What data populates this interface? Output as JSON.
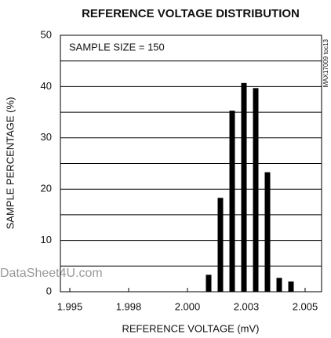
{
  "chart_data": {
    "type": "bar",
    "title": "REFERENCE VOLTAGE DISTRIBUTION",
    "x_label": "REFERENCE VOLTAGE (mV)",
    "y_label": "SAMPLE PERCENTAGE (%)",
    "annotations": [
      "SAMPLE SIZE = 150",
      "MAX17009 toc13",
      "DataSheet4U.com"
    ],
    "x": [
      2.0009,
      2.0014,
      2.0019,
      2.0024,
      2.0029,
      2.0034,
      2.0039,
      2.0044
    ],
    "values": [
      3.3,
      18.3,
      35.3,
      40.7,
      39.7,
      23.3,
      2.7,
      2
    ],
    "color": "#000000",
    "xlim": [
      1.9946,
      2.0057
    ],
    "xticks": [
      {
        "value": 1.995,
        "label": "1.995"
      },
      {
        "value": 1.9975,
        "label": "1.998"
      },
      {
        "value": 2.0,
        "label": "2.000"
      },
      {
        "value": 2.0025,
        "label": "2.003"
      },
      {
        "value": 2.005,
        "label": "2.005"
      }
    ],
    "ylim": [
      0,
      50
    ],
    "yticks": [
      0,
      10,
      20,
      30,
      40,
      50
    ],
    "minor_grid": [
      5,
      15,
      25,
      35,
      45
    ],
    "grid": true
  }
}
